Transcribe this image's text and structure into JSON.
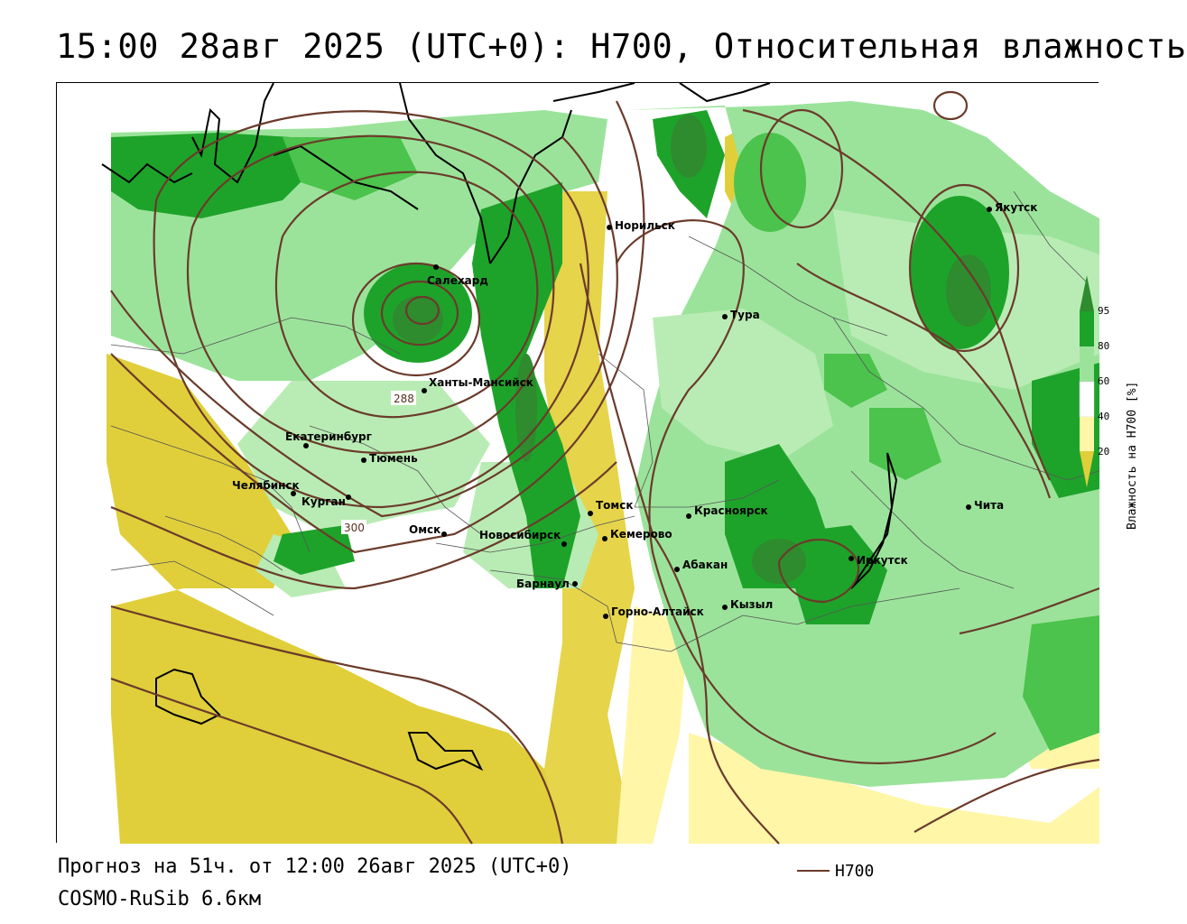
{
  "title": "15:00 28авг 2025 (UTC+0): H700, Относительная влажность",
  "footer": {
    "forecast": "Прогноз на 51ч. от 12:00 26авг 2025 (UTC+0)",
    "model": "COSMO-RuSib 6.6км",
    "h700_key_label": "H700"
  },
  "legend": {
    "title": "Влажность на H700 [%]",
    "ticks": [
      "95",
      "80",
      "60",
      "40",
      "20"
    ],
    "colors": {
      "above_95": "#2e8b2e",
      "80_95": "#1ea32a",
      "60_80": "#9be39b",
      "40_60": "#ffffff",
      "20_40": "#fff6a8",
      "below_20": "#e0cf3a"
    }
  },
  "contour_labels": [
    "288",
    "300"
  ],
  "cities": [
    {
      "name": "Норильск"
    },
    {
      "name": "Якутск"
    },
    {
      "name": "Салехард"
    },
    {
      "name": "Тура"
    },
    {
      "name": "Ханты-Мансийск"
    },
    {
      "name": "Екатеринбург"
    },
    {
      "name": "Тюмень"
    },
    {
      "name": "Челябинск"
    },
    {
      "name": "Курган"
    },
    {
      "name": "Омск"
    },
    {
      "name": "Новосибирск"
    },
    {
      "name": "Томск"
    },
    {
      "name": "Кемерово"
    },
    {
      "name": "Красноярск"
    },
    {
      "name": "Барнаул"
    },
    {
      "name": "Абакан"
    },
    {
      "name": "Иркутск"
    },
    {
      "name": "Чита"
    },
    {
      "name": "Кызыл"
    },
    {
      "name": "Горно-Алтайск"
    }
  ],
  "colors": {
    "contour": "#6b3b2b",
    "coast": "#000000",
    "border": "#555555"
  }
}
